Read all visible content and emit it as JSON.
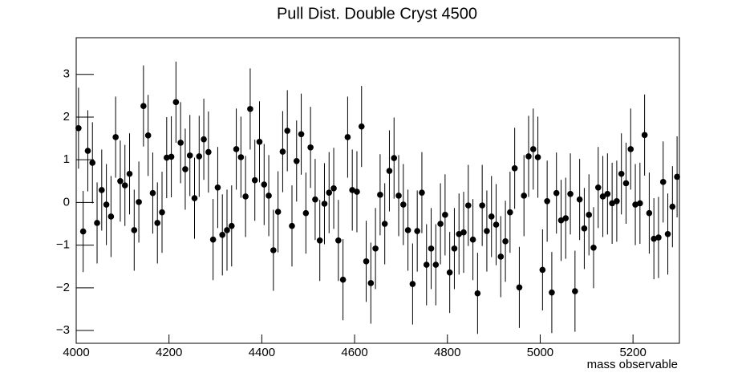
{
  "chart_data": {
    "type": "scatter",
    "title": "Pull Dist. Double Cryst 4500",
    "x_label": "mass observable",
    "x": [
      4005,
      4015,
      4025,
      4035,
      4045,
      4055,
      4065,
      4075,
      4085,
      4095,
      4105,
      4115,
      4125,
      4135,
      4145,
      4155,
      4165,
      4175,
      4185,
      4195,
      4205,
      4215,
      4225,
      4235,
      4245,
      4255,
      4265,
      4275,
      4285,
      4295,
      4305,
      4315,
      4325,
      4335,
      4345,
      4355,
      4365,
      4375,
      4385,
      4395,
      4405,
      4415,
      4425,
      4435,
      4445,
      4455,
      4465,
      4475,
      4485,
      4495,
      4505,
      4515,
      4525,
      4535,
      4545,
      4555,
      4565,
      4575,
      4585,
      4595,
      4605,
      4615,
      4625,
      4635,
      4645,
      4655,
      4665,
      4675,
      4685,
      4695,
      4705,
      4715,
      4725,
      4735,
      4745,
      4755,
      4765,
      4775,
      4785,
      4795,
      4805,
      4815,
      4825,
      4835,
      4845,
      4855,
      4865,
      4875,
      4885,
      4895,
      4905,
      4915,
      4925,
      4935,
      4945,
      4955,
      4965,
      4975,
      4985,
      4995,
      5005,
      5015,
      5025,
      5035,
      5045,
      5055,
      5065,
      5075,
      5085,
      5095,
      5105,
      5115,
      5125,
      5135,
      5145,
      5155,
      5165,
      5175,
      5185,
      5195,
      5205,
      5215,
      5225,
      5235,
      5245,
      5255,
      5265,
      5275,
      5285,
      5295
    ],
    "values": [
      1.74,
      -0.68,
      1.21,
      0.93,
      -0.48,
      0.29,
      -0.05,
      -0.33,
      1.53,
      0.5,
      0.4,
      0.67,
      -0.65,
      0.01,
      2.26,
      1.57,
      0.22,
      -0.48,
      -0.23,
      1.05,
      1.07,
      2.35,
      1.4,
      0.78,
      1.1,
      0.1,
      1.08,
      1.48,
      1.18,
      -0.87,
      0.35,
      -0.76,
      -0.65,
      -0.55,
      1.25,
      1.06,
      0.14,
      2.19,
      0.52,
      1.42,
      0.42,
      0.16,
      -1.12,
      -0.22,
      1.19,
      1.68,
      -0.55,
      0.97,
      1.6,
      -0.25,
      1.29,
      0.07,
      -0.89,
      -0.03,
      0.23,
      0.33,
      -0.89,
      -1.81,
      1.53,
      0.29,
      0.25,
      1.78,
      -1.38,
      -1.89,
      -1.08,
      0.18,
      -0.5,
      0.74,
      1.04,
      0.16,
      -0.05,
      -0.65,
      -1.91,
      -0.67,
      0.23,
      -1.46,
      -1.08,
      -1.46,
      -0.5,
      -0.29,
      -1.64,
      -1.08,
      -0.74,
      -0.7,
      -0.07,
      -0.87,
      -2.13,
      -0.07,
      -0.67,
      -0.33,
      -0.52,
      -1.27,
      -0.91,
      -0.23,
      0.8,
      -1.99,
      0.16,
      1.08,
      1.25,
      1.06,
      -1.58,
      0.03,
      -2.11,
      0.22,
      -0.42,
      -0.37,
      0.2,
      -2.08,
      0.07,
      -0.61,
      -0.29,
      -1.06,
      0.35,
      0.14,
      0.2,
      -0.02,
      0.03,
      0.67,
      0.45,
      1.25,
      -0.05,
      -0.02,
      1.58,
      -0.25,
      -0.85,
      -0.82,
      0.48,
      -0.74,
      -0.1,
      0.6
    ],
    "error": 0.95,
    "color": "#000000",
    "xlim": [
      4000,
      5300
    ],
    "xticks": [
      4000,
      4200,
      4400,
      4600,
      4800,
      5000,
      5200
    ],
    "ylim": [
      -3.3,
      3.86
    ],
    "yticks": [
      {
        "value": -3,
        "label": "−3"
      },
      {
        "value": -2,
        "label": "−2"
      },
      {
        "value": -1,
        "label": "−1"
      },
      0,
      1,
      2,
      3
    ]
  }
}
